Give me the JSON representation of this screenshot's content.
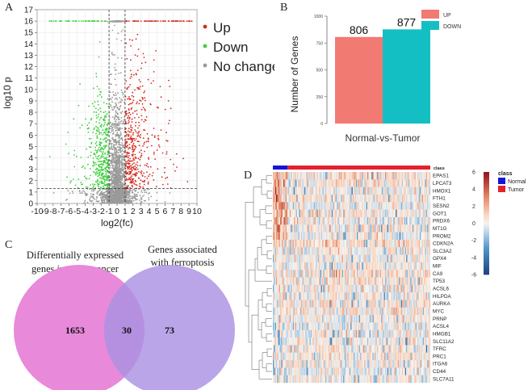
{
  "panels": {
    "a": "A",
    "b": "B",
    "c": "C",
    "d": "D"
  },
  "volcano": {
    "xlabel": "log2(fc)",
    "ylabel": "log10 p",
    "x_ticks": [
      "-10",
      "-9",
      "-8",
      "-7",
      "-6",
      "-5",
      "-4",
      "-3",
      "-2",
      "-1",
      "0",
      "1",
      "2",
      "3",
      "4",
      "5",
      "6",
      "7",
      "8",
      "9",
      "10"
    ],
    "y_ticks": [
      "0",
      "1",
      "2",
      "3",
      "4",
      "5",
      "6",
      "7",
      "8",
      "9",
      "10",
      "11",
      "12",
      "13",
      "14",
      "15",
      "16",
      "17"
    ],
    "xlim": [
      -10,
      10
    ],
    "ylim": [
      0,
      17
    ],
    "fc_threshold": [
      -1,
      1
    ],
    "p_threshold": 1.3,
    "legend": {
      "up": "Up",
      "down": "Down",
      "none": "No change"
    },
    "colors": {
      "up": "#d42a1e",
      "down": "#3fcf3f",
      "none": "#9a9a9a"
    }
  },
  "chart_data": [
    {
      "type": "bar",
      "title": "",
      "xlabel": "Normal-vs-Tumor",
      "ylabel": "Number of Genes",
      "categories": [
        "UP",
        "DOWN"
      ],
      "values": [
        806,
        877
      ],
      "value_labels": [
        "806",
        "877"
      ],
      "ylim": [
        0,
        1000
      ],
      "y_ticks": [
        "0",
        "250",
        "500",
        "750",
        "1000"
      ],
      "legend": [
        "UP",
        "DOWN"
      ],
      "colors": [
        "#f17a72",
        "#14bfc4"
      ]
    }
  ],
  "venn": {
    "left_title_line1": "Differentially expressed",
    "left_title_line2": "genes in colon cancer",
    "right_title_line1": "Genes associated",
    "right_title_line2": "with ferroptosis",
    "left_only": "1653",
    "overlap": "30",
    "right_only": "73",
    "left_color": "#e889d9",
    "right_color": "#a991e3"
  },
  "heatmap": {
    "genes": [
      "EPAS1",
      "LPCAT3",
      "HMOX1",
      "FTH1",
      "SESN2",
      "GOT1",
      "PRDX6",
      "MT1G",
      "PROM2",
      "CDKN2A",
      "SLC3A2",
      "GPX4",
      "MIF",
      "CA9",
      "TP53",
      "ACSL6",
      "HILPDA",
      "AURKA",
      "MYC",
      "PRNP",
      "ACSL4",
      "HMGB1",
      "SLC11A2",
      "TFRC",
      "PRC1",
      "ITGA6",
      "CD44",
      "SLC7A11"
    ],
    "class_label": "class",
    "colorbar_ticks": [
      "6",
      "4",
      "2",
      "0",
      "-2",
      "-4",
      "-6"
    ],
    "legend_title": "class",
    "legend_items": [
      "Normal",
      "Tumor"
    ],
    "class_colors": {
      "normal": "#1515d9",
      "tumor": "#e5212e"
    }
  }
}
